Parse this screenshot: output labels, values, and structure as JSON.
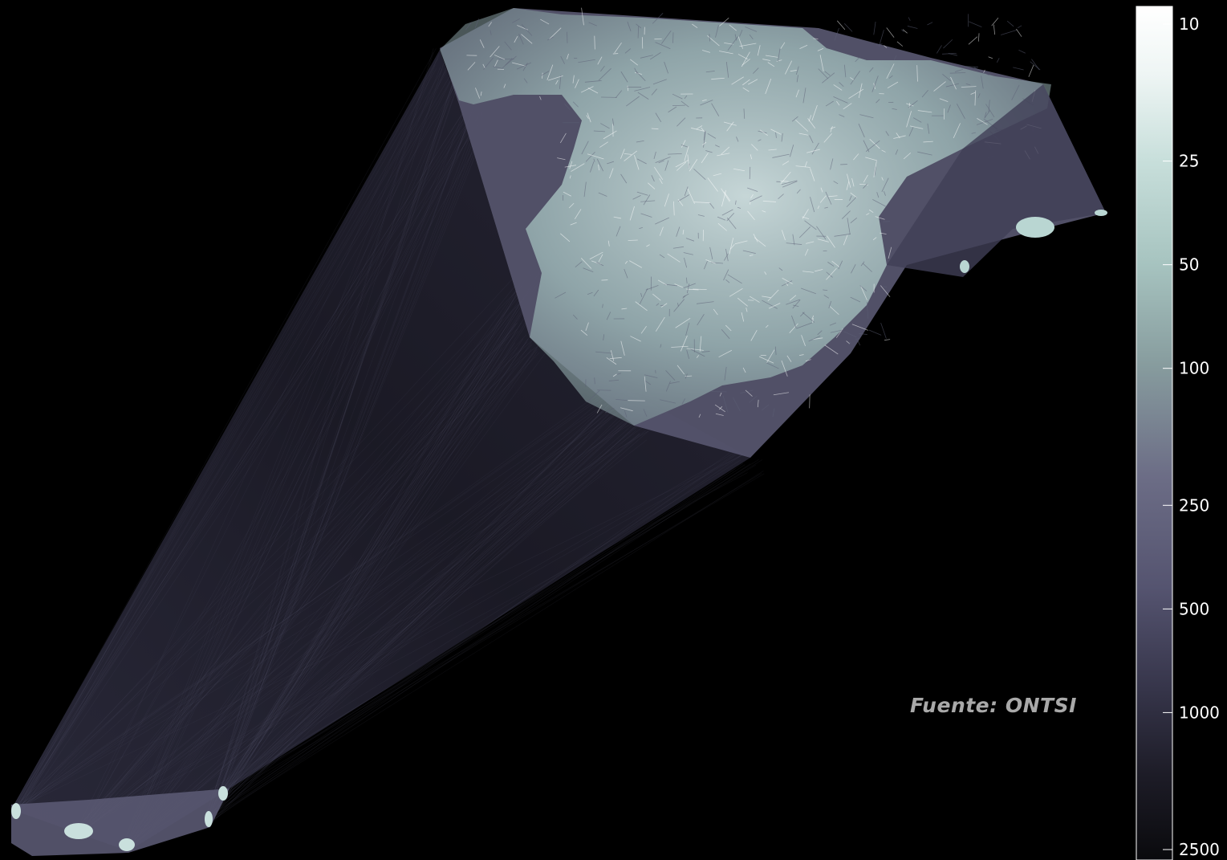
{
  "source": "Fuente: ONTSI",
  "colors": {
    "background": "#000000",
    "ramp": [
      "#ffffff",
      "#e9f3f1",
      "#b6d1cc",
      "#8ba39f",
      "#6c6d84",
      "#4b4a63",
      "#2b2a3b",
      "#111116"
    ],
    "tick_text": "#ffffff",
    "source_text": "#a9a9a9"
  },
  "colorbar": {
    "scale": "log",
    "domain": [
      10,
      2500
    ],
    "ticks": [
      {
        "value": 10,
        "label": "10"
      },
      {
        "value": 25,
        "label": "25"
      },
      {
        "value": 50,
        "label": "50"
      },
      {
        "value": 100,
        "label": "100"
      },
      {
        "value": 250,
        "label": "250"
      },
      {
        "value": 500,
        "label": "500"
      },
      {
        "value": 1000,
        "label": "1000"
      },
      {
        "value": 2500,
        "label": "2500"
      }
    ]
  },
  "regions": [
    "peninsula",
    "balearic-islands",
    "canary-islands"
  ]
}
